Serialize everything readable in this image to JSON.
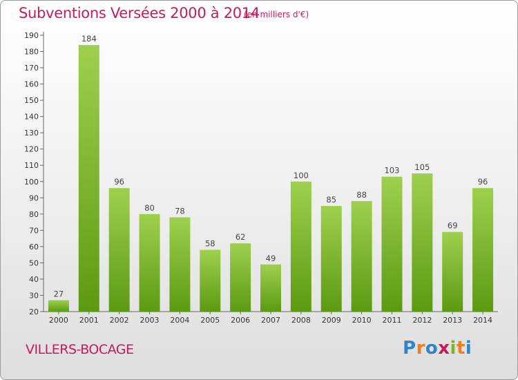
{
  "title": "Subventions Versées 2000 à 2014",
  "subtitle": "(en milliers d'€)",
  "place": "VILLERS-BOCAGE",
  "logo": {
    "text": "Proxiti",
    "letters": [
      {
        "ch": "P",
        "color": "#2e86c8"
      },
      {
        "ch": "r",
        "color": "#f07f1a"
      },
      {
        "ch": "o",
        "color": "#2e86c8"
      },
      {
        "ch": "x",
        "color": "#c8195e"
      },
      {
        "ch": "i",
        "color": "#7cb32b"
      },
      {
        "ch": "t",
        "color": "#f07f1a"
      },
      {
        "ch": "i",
        "color": "#2e86c8"
      }
    ]
  },
  "colors": {
    "bar_top": "#9ed04e",
    "bar_bottom": "#5c9a12",
    "accent": "#c8195e"
  },
  "chart_data": {
    "type": "bar",
    "title": "Subventions Versées 2000 à 2014",
    "subtitle": "(en milliers d'€)",
    "categories": [
      "2000",
      "2001",
      "2002",
      "2003",
      "2004",
      "2005",
      "2006",
      "2007",
      "2008",
      "2009",
      "2010",
      "2011",
      "2012",
      "2013",
      "2014"
    ],
    "values": [
      27,
      184,
      96,
      80,
      78,
      58,
      62,
      49,
      100,
      85,
      88,
      103,
      105,
      69,
      96
    ],
    "xlabel": "",
    "ylabel": "",
    "ylim": [
      20,
      190
    ],
    "yticks": [
      20,
      30,
      40,
      50,
      60,
      70,
      80,
      90,
      100,
      110,
      120,
      130,
      140,
      150,
      160,
      170,
      180,
      190
    ],
    "grid": false,
    "legend": "none"
  }
}
